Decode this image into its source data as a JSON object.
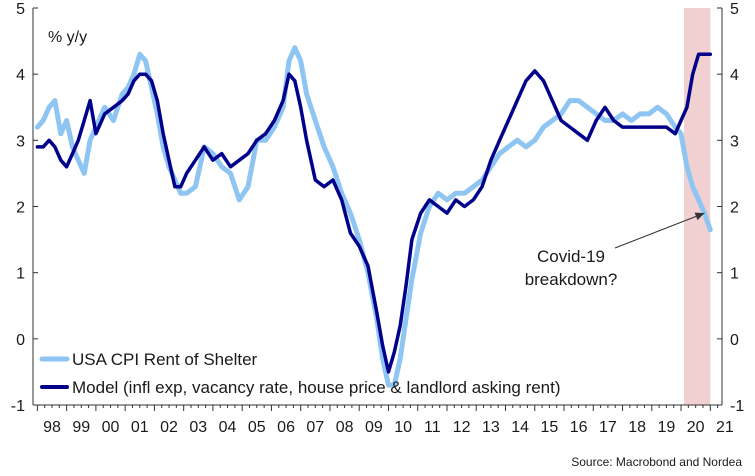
{
  "chart_data": {
    "type": "line",
    "unit_label": "% y/y",
    "source": "Source: Macrobond and Nordea",
    "ylim": [
      -1,
      5
    ],
    "yticks": [
      -1,
      0,
      1,
      2,
      3,
      4,
      5
    ],
    "xlim": [
      1997.85,
      2021.4
    ],
    "xticks": [
      "98",
      "99",
      "00",
      "01",
      "02",
      "03",
      "04",
      "05",
      "06",
      "07",
      "08",
      "09",
      "10",
      "11",
      "12",
      "13",
      "14",
      "15",
      "16",
      "17",
      "18",
      "19",
      "20",
      "21"
    ],
    "grid": false,
    "legend_position": "bottom-left",
    "shaded_region": {
      "from": 2020.1,
      "to": 2021.0,
      "color": "#f0d0d0"
    },
    "annotation": {
      "lines": [
        "Covid-19",
        "breakdown?"
      ],
      "target": [
        2020.8,
        1.9
      ]
    },
    "series": [
      {
        "name": "USA CPI Rent of Shelter",
        "color": "#8ec5f2",
        "x": [
          1998.0,
          1998.2,
          1998.4,
          1998.6,
          1998.8,
          1999.0,
          1999.2,
          1999.4,
          1999.6,
          1999.8,
          2000.0,
          2000.3,
          2000.6,
          2000.9,
          2001.1,
          2001.3,
          2001.5,
          2001.7,
          2001.9,
          2002.1,
          2002.3,
          2002.5,
          2002.7,
          2002.9,
          2003.1,
          2003.4,
          2003.7,
          2004.0,
          2004.3,
          2004.6,
          2004.9,
          2005.2,
          2005.5,
          2005.8,
          2006.1,
          2006.4,
          2006.6,
          2006.8,
          2007.0,
          2007.2,
          2007.5,
          2007.8,
          2008.1,
          2008.4,
          2008.7,
          2009.0,
          2009.3,
          2009.6,
          2009.8,
          2010.0,
          2010.2,
          2010.4,
          2010.6,
          2010.8,
          2011.1,
          2011.4,
          2011.7,
          2012.0,
          2012.3,
          2012.6,
          2012.9,
          2013.2,
          2013.5,
          2013.8,
          2014.1,
          2014.4,
          2014.7,
          2015.0,
          2015.3,
          2015.6,
          2015.9,
          2016.2,
          2016.5,
          2016.8,
          2017.1,
          2017.4,
          2017.7,
          2018.0,
          2018.3,
          2018.6,
          2018.9,
          2019.2,
          2019.5,
          2019.8,
          2020.0,
          2020.2,
          2020.4,
          2020.6,
          2020.8,
          2021.0
        ],
        "values": [
          3.2,
          3.3,
          3.5,
          3.6,
          3.1,
          3.3,
          2.9,
          2.7,
          2.5,
          3.0,
          3.2,
          3.5,
          3.3,
          3.7,
          3.8,
          4.0,
          4.3,
          4.2,
          3.8,
          3.4,
          2.9,
          2.6,
          2.4,
          2.2,
          2.2,
          2.3,
          2.9,
          2.8,
          2.6,
          2.5,
          2.1,
          2.3,
          3.0,
          3.0,
          3.2,
          3.5,
          4.2,
          4.4,
          4.2,
          3.7,
          3.3,
          2.9,
          2.6,
          2.2,
          1.9,
          1.5,
          1.0,
          0.3,
          -0.3,
          -0.7,
          -0.7,
          -0.3,
          0.3,
          0.9,
          1.6,
          2.0,
          2.2,
          2.1,
          2.2,
          2.2,
          2.3,
          2.4,
          2.6,
          2.8,
          2.9,
          3.0,
          2.9,
          3.0,
          3.2,
          3.3,
          3.4,
          3.6,
          3.6,
          3.5,
          3.4,
          3.3,
          3.3,
          3.4,
          3.3,
          3.4,
          3.4,
          3.5,
          3.4,
          3.2,
          3.1,
          2.6,
          2.3,
          2.1,
          1.9,
          1.65
        ]
      },
      {
        "name": "Model (infl exp, vacancy rate, house price & landlord asking rent)",
        "color": "#00008b",
        "x": [
          1998.0,
          1998.2,
          1998.4,
          1998.6,
          1998.8,
          1999.0,
          1999.2,
          1999.4,
          1999.6,
          1999.8,
          2000.0,
          2000.3,
          2000.6,
          2000.9,
          2001.1,
          2001.3,
          2001.5,
          2001.7,
          2001.9,
          2002.1,
          2002.3,
          2002.5,
          2002.7,
          2002.9,
          2003.1,
          2003.4,
          2003.7,
          2004.0,
          2004.3,
          2004.6,
          2004.9,
          2005.2,
          2005.5,
          2005.8,
          2006.1,
          2006.4,
          2006.6,
          2006.8,
          2007.0,
          2007.2,
          2007.5,
          2007.8,
          2008.1,
          2008.4,
          2008.7,
          2009.0,
          2009.3,
          2009.6,
          2009.8,
          2010.0,
          2010.2,
          2010.4,
          2010.6,
          2010.8,
          2011.1,
          2011.4,
          2011.7,
          2012.0,
          2012.3,
          2012.6,
          2012.9,
          2013.2,
          2013.5,
          2013.8,
          2014.1,
          2014.4,
          2014.7,
          2015.0,
          2015.3,
          2015.6,
          2015.9,
          2016.2,
          2016.5,
          2016.8,
          2017.1,
          2017.4,
          2017.7,
          2018.0,
          2018.3,
          2018.6,
          2018.9,
          2019.2,
          2019.5,
          2019.8,
          2020.0,
          2020.2,
          2020.4,
          2020.6,
          2020.8,
          2021.0
        ],
        "values": [
          2.9,
          2.9,
          3.0,
          2.9,
          2.7,
          2.6,
          2.8,
          3.0,
          3.3,
          3.6,
          3.1,
          3.4,
          3.5,
          3.6,
          3.7,
          3.9,
          4.0,
          4.0,
          3.9,
          3.6,
          3.1,
          2.7,
          2.3,
          2.3,
          2.5,
          2.7,
          2.9,
          2.7,
          2.8,
          2.6,
          2.7,
          2.8,
          3.0,
          3.1,
          3.3,
          3.6,
          4.0,
          3.9,
          3.5,
          3.0,
          2.4,
          2.3,
          2.4,
          2.1,
          1.6,
          1.4,
          1.1,
          0.4,
          -0.1,
          -0.5,
          -0.2,
          0.2,
          0.8,
          1.5,
          1.9,
          2.1,
          2.0,
          1.9,
          2.1,
          2.0,
          2.1,
          2.3,
          2.7,
          3.0,
          3.3,
          3.6,
          3.9,
          4.05,
          3.9,
          3.6,
          3.3,
          3.2,
          3.1,
          3.0,
          3.3,
          3.5,
          3.3,
          3.2,
          3.2,
          3.2,
          3.2,
          3.2,
          3.2,
          3.1,
          3.3,
          3.5,
          4.0,
          4.3,
          4.3,
          4.3
        ]
      }
    ]
  }
}
